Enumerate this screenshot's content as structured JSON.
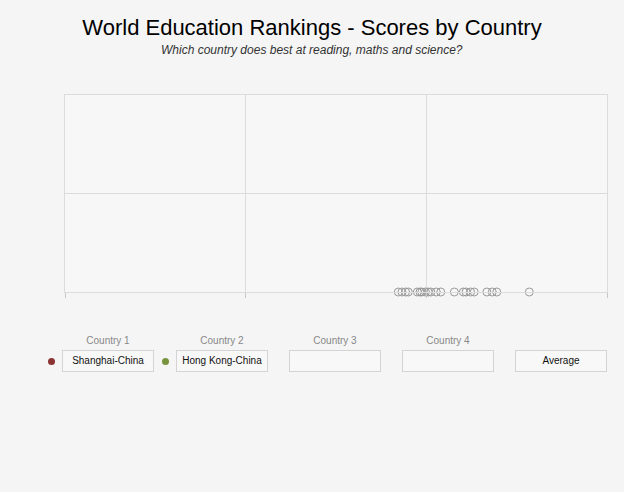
{
  "chart_data": {
    "type": "scatter",
    "title": "World Education Rankings - Scores by Country",
    "subtitle": "Which country does best at reading, maths and science?",
    "x": [
      369,
      373,
      377,
      380,
      390,
      393,
      395,
      399,
      402,
      405,
      411,
      416,
      431,
      441,
      444,
      449,
      453,
      467,
      473,
      478,
      514
    ],
    "values": [
      0,
      0,
      0,
      0,
      0,
      0,
      0,
      0,
      0,
      0,
      0,
      0,
      0,
      0,
      0,
      0,
      0,
      0,
      0,
      0,
      0
    ],
    "color": "#999999",
    "marker": "circle-open",
    "xlim": [
      0,
      600
    ],
    "xticks": [
      0,
      200,
      400,
      600
    ],
    "ylim": [
      0,
      2
    ],
    "yticks": [
      0,
      1,
      2
    ],
    "grid": true,
    "tick_labels": false
  },
  "controls": {
    "countries": [
      {
        "label": "Country 1",
        "value": "Shanghai-China",
        "color": "#8b3232"
      },
      {
        "label": "Country 2",
        "value": "Hong Kong-China",
        "color": "#77933c"
      },
      {
        "label": "Country 3"
      },
      {
        "label": "Country 4"
      }
    ],
    "button": "Average"
  }
}
